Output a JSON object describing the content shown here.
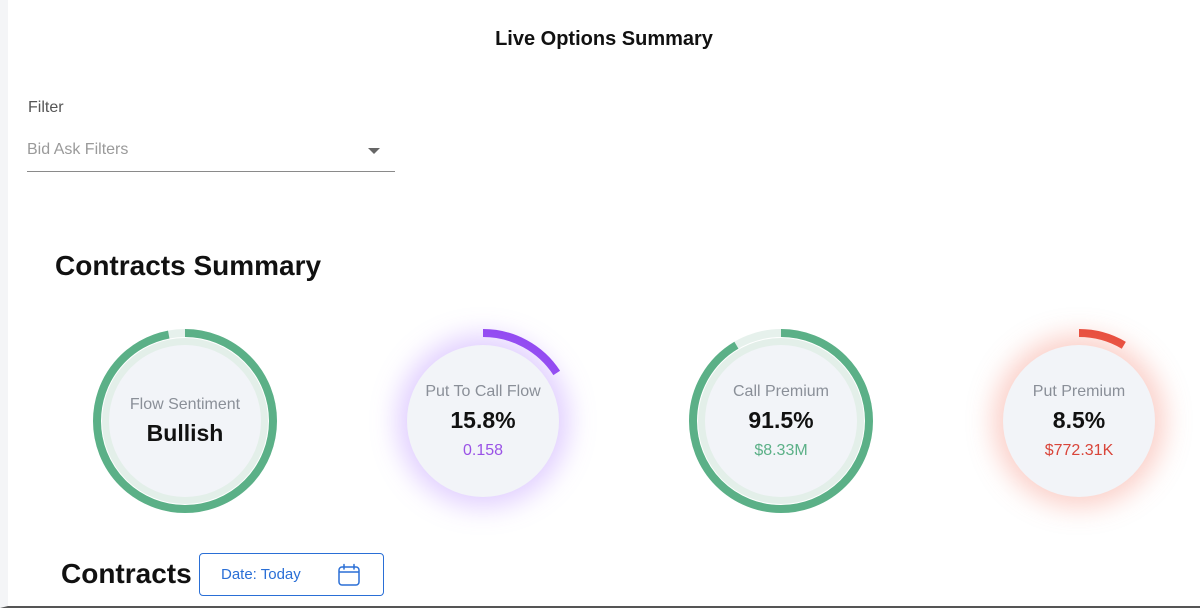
{
  "header": {
    "title": "Live Options Summary"
  },
  "filter": {
    "label": "Filter",
    "placeholder": "Bid Ask Filters"
  },
  "summary": {
    "title": "Contracts Summary",
    "gauges": [
      {
        "label": "Flow Sentiment",
        "value": "Bullish",
        "sub": "",
        "fraction": 0.97,
        "color": "#5bb087"
      },
      {
        "label": "Put To Call Flow",
        "value": "15.8%",
        "sub": "0.158",
        "fraction": 0.158,
        "color": "#9147f0",
        "sub_color": "#9a52e6"
      },
      {
        "label": "Call Premium",
        "value": "91.5%",
        "sub": "$8.33M",
        "fraction": 0.915,
        "color": "#5bb087",
        "sub_color": "#5bb087"
      },
      {
        "label": "Put Premium",
        "value": "8.5%",
        "sub": "$772.31K",
        "fraction": 0.085,
        "color": "#e74c3c",
        "sub_color": "#d9453a"
      }
    ]
  },
  "contracts": {
    "title": "Contracts",
    "date_button": "Date: Today",
    "calendar_icon": "calendar-icon"
  }
}
